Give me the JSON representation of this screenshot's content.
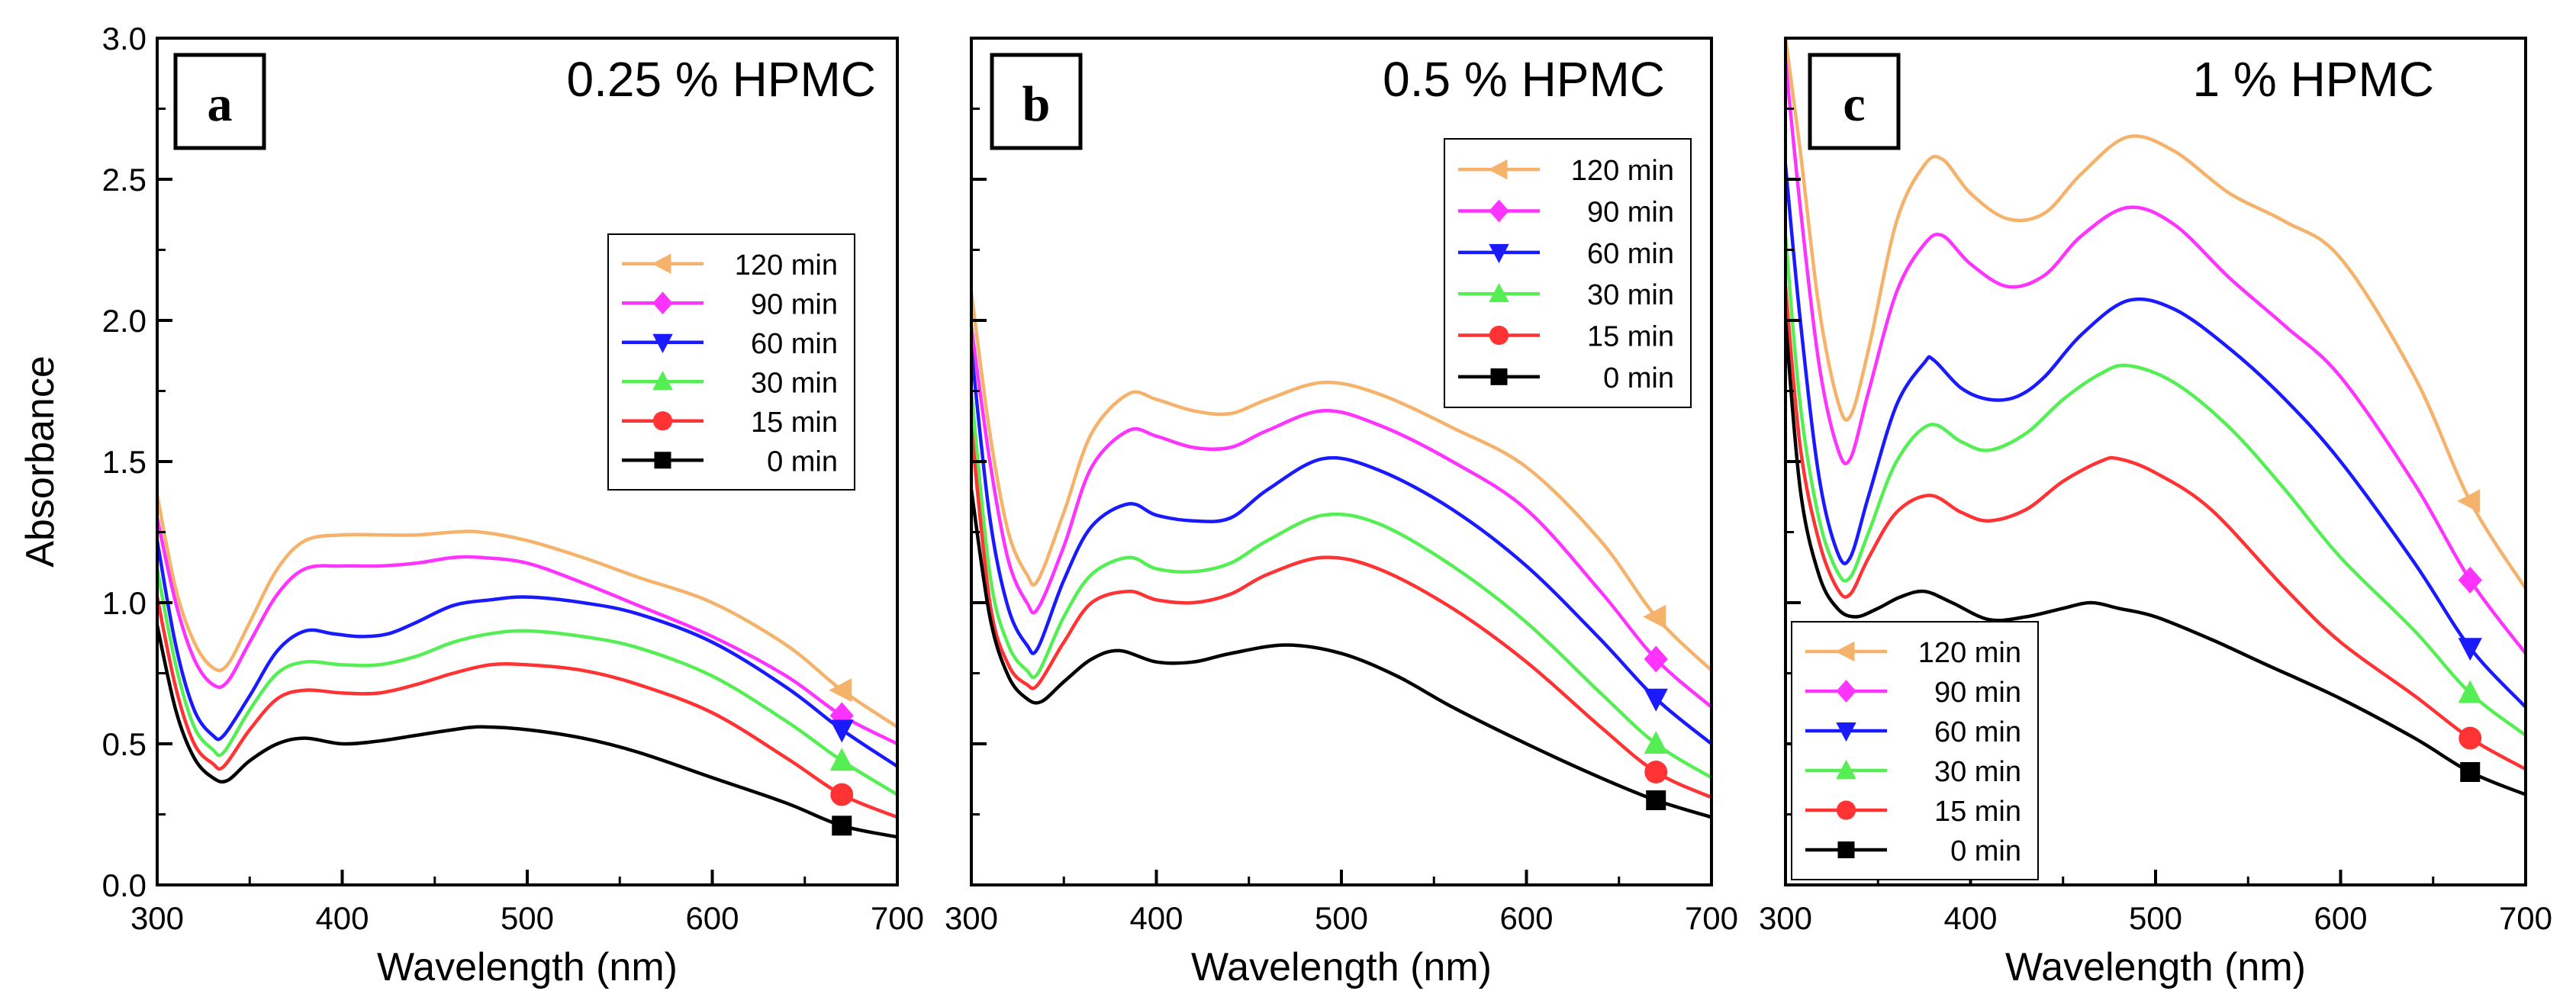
{
  "chart_data": [
    {
      "type": "line",
      "panel_label": "a",
      "title": "0.25 % HPMC",
      "xlabel": "Wavelength (nm)",
      "ylabel": "Absorbance",
      "xlim": [
        300,
        700
      ],
      "ylim": [
        0.0,
        3.0
      ],
      "xticks": [
        "300",
        "400",
        "500",
        "600",
        "700"
      ],
      "yticks": [
        "0.0",
        "0.5",
        "1.0",
        "1.5",
        "2.0",
        "2.5",
        "3.0"
      ],
      "marker_x": 670,
      "legend_position": "center-right",
      "series": [
        {
          "name": "120 min",
          "color": "#f5b26b",
          "marker": "triangle-left",
          "x": [
            300,
            310,
            320,
            330,
            338,
            350,
            365,
            380,
            400,
            420,
            440,
            460,
            475,
            500,
            530,
            560,
            600,
            640,
            670,
            700
          ],
          "y": [
            1.38,
            1.05,
            0.86,
            0.77,
            0.78,
            0.93,
            1.12,
            1.22,
            1.24,
            1.24,
            1.24,
            1.25,
            1.25,
            1.22,
            1.16,
            1.09,
            1.0,
            0.85,
            0.69,
            0.56
          ]
        },
        {
          "name": "90 min",
          "color": "#ff33ff",
          "marker": "diamond",
          "x": [
            300,
            310,
            320,
            330,
            338,
            350,
            365,
            380,
            400,
            420,
            440,
            460,
            475,
            500,
            530,
            560,
            600,
            640,
            670,
            700
          ],
          "y": [
            1.3,
            1.0,
            0.8,
            0.71,
            0.72,
            0.86,
            1.03,
            1.12,
            1.13,
            1.13,
            1.14,
            1.16,
            1.16,
            1.14,
            1.07,
            0.99,
            0.88,
            0.74,
            0.6,
            0.5
          ]
        },
        {
          "name": "60 min",
          "color": "#1a1aff",
          "marker": "triangle-down",
          "x": [
            300,
            310,
            320,
            330,
            336,
            350,
            365,
            380,
            395,
            410,
            425,
            440,
            460,
            480,
            500,
            530,
            560,
            600,
            640,
            670,
            700
          ],
          "y": [
            1.22,
            0.85,
            0.62,
            0.53,
            0.53,
            0.67,
            0.83,
            0.9,
            0.89,
            0.88,
            0.89,
            0.93,
            0.99,
            1.01,
            1.02,
            1.0,
            0.96,
            0.86,
            0.7,
            0.55,
            0.42
          ]
        },
        {
          "name": "30 min",
          "color": "#55ee55",
          "marker": "triangle-up",
          "x": [
            300,
            310,
            320,
            330,
            336,
            350,
            365,
            380,
            400,
            420,
            440,
            460,
            480,
            500,
            530,
            560,
            600,
            640,
            670,
            700
          ],
          "y": [
            1.12,
            0.78,
            0.56,
            0.48,
            0.47,
            0.62,
            0.75,
            0.79,
            0.78,
            0.78,
            0.81,
            0.86,
            0.89,
            0.9,
            0.88,
            0.84,
            0.74,
            0.58,
            0.44,
            0.32
          ]
        },
        {
          "name": "15 min",
          "color": "#ff3333",
          "marker": "circle",
          "x": [
            300,
            310,
            320,
            330,
            336,
            350,
            365,
            380,
            400,
            420,
            440,
            460,
            480,
            500,
            530,
            560,
            600,
            640,
            670,
            700
          ],
          "y": [
            1.02,
            0.7,
            0.5,
            0.43,
            0.42,
            0.55,
            0.66,
            0.69,
            0.68,
            0.68,
            0.71,
            0.75,
            0.78,
            0.78,
            0.76,
            0.71,
            0.61,
            0.45,
            0.32,
            0.24
          ]
        },
        {
          "name": "0 min",
          "color": "#000000",
          "marker": "square",
          "x": [
            300,
            310,
            320,
            330,
            338,
            350,
            365,
            380,
            400,
            420,
            440,
            460,
            475,
            500,
            530,
            560,
            600,
            640,
            670,
            700
          ],
          "y": [
            0.92,
            0.62,
            0.45,
            0.38,
            0.37,
            0.44,
            0.5,
            0.52,
            0.5,
            0.51,
            0.53,
            0.55,
            0.56,
            0.55,
            0.52,
            0.47,
            0.38,
            0.29,
            0.21,
            0.17
          ]
        }
      ]
    },
    {
      "type": "line",
      "panel_label": "b",
      "title": "0.5 % HPMC",
      "xlabel": "Wavelength (nm)",
      "ylabel": "",
      "xlim": [
        300,
        700
      ],
      "ylim": [
        0.0,
        3.0
      ],
      "xticks": [
        "300",
        "400",
        "500",
        "600",
        "700"
      ],
      "yticks": [],
      "marker_x": 670,
      "legend_position": "top-right",
      "series": [
        {
          "name": "120 min",
          "color": "#f5b26b",
          "marker": "triangle-left",
          "x": [
            300,
            310,
            320,
            330,
            336,
            350,
            365,
            385,
            400,
            420,
            440,
            460,
            490,
            520,
            560,
            600,
            640,
            670,
            700
          ],
          "y": [
            2.1,
            1.6,
            1.25,
            1.1,
            1.08,
            1.32,
            1.6,
            1.74,
            1.72,
            1.68,
            1.67,
            1.72,
            1.78,
            1.74,
            1.62,
            1.48,
            1.22,
            0.95,
            0.76
          ]
        },
        {
          "name": "90 min",
          "color": "#ff33ff",
          "marker": "diamond",
          "x": [
            300,
            310,
            320,
            330,
            336,
            350,
            365,
            385,
            400,
            420,
            440,
            460,
            490,
            520,
            560,
            600,
            640,
            670,
            700
          ],
          "y": [
            1.98,
            1.5,
            1.15,
            1.0,
            0.98,
            1.2,
            1.48,
            1.61,
            1.59,
            1.55,
            1.55,
            1.61,
            1.68,
            1.63,
            1.5,
            1.33,
            1.04,
            0.8,
            0.63
          ]
        },
        {
          "name": "60 min",
          "color": "#1a1aff",
          "marker": "triangle-down",
          "x": [
            300,
            310,
            320,
            330,
            336,
            350,
            365,
            385,
            400,
            420,
            440,
            460,
            490,
            520,
            560,
            600,
            640,
            670,
            700
          ],
          "y": [
            1.9,
            1.3,
            0.98,
            0.85,
            0.84,
            1.08,
            1.27,
            1.35,
            1.31,
            1.29,
            1.3,
            1.4,
            1.51,
            1.47,
            1.33,
            1.13,
            0.87,
            0.66,
            0.5
          ]
        },
        {
          "name": "30 min",
          "color": "#55ee55",
          "marker": "triangle-up",
          "x": [
            300,
            310,
            320,
            330,
            336,
            350,
            365,
            385,
            400,
            420,
            440,
            460,
            490,
            520,
            560,
            600,
            640,
            670,
            700
          ],
          "y": [
            1.75,
            1.1,
            0.85,
            0.76,
            0.75,
            0.95,
            1.1,
            1.16,
            1.12,
            1.11,
            1.14,
            1.22,
            1.31,
            1.28,
            1.13,
            0.93,
            0.68,
            0.5,
            0.38
          ]
        },
        {
          "name": "15 min",
          "color": "#ff3333",
          "marker": "circle",
          "x": [
            300,
            310,
            320,
            330,
            336,
            350,
            365,
            385,
            400,
            420,
            440,
            460,
            490,
            520,
            560,
            600,
            640,
            670,
            700
          ],
          "y": [
            1.62,
            1.0,
            0.78,
            0.71,
            0.71,
            0.86,
            1.0,
            1.04,
            1.01,
            1.0,
            1.03,
            1.1,
            1.16,
            1.12,
            0.98,
            0.79,
            0.56,
            0.4,
            0.31
          ]
        },
        {
          "name": "0 min",
          "color": "#000000",
          "marker": "square",
          "x": [
            300,
            310,
            320,
            330,
            338,
            350,
            365,
            380,
            400,
            420,
            440,
            470,
            500,
            530,
            560,
            600,
            640,
            670,
            700
          ],
          "y": [
            1.4,
            0.95,
            0.74,
            0.66,
            0.65,
            0.72,
            0.8,
            0.83,
            0.79,
            0.79,
            0.82,
            0.85,
            0.82,
            0.74,
            0.63,
            0.5,
            0.38,
            0.3,
            0.24
          ]
        }
      ]
    },
    {
      "type": "line",
      "panel_label": "c",
      "title": "1 % HPMC",
      "xlabel": "Wavelength (nm)",
      "ylabel": "",
      "xlim": [
        300,
        700
      ],
      "ylim": [
        0.0,
        3.0
      ],
      "xticks": [
        "300",
        "400",
        "500",
        "600",
        "700"
      ],
      "yticks": [],
      "marker_x": 670,
      "legend_position": "bottom-left",
      "series": [
        {
          "name": "120 min",
          "color": "#f5b26b",
          "marker": "triangle-left",
          "x": [
            300,
            308,
            318,
            328,
            335,
            345,
            360,
            375,
            385,
            400,
            420,
            440,
            460,
            485,
            510,
            540,
            570,
            600,
            640,
            670,
            700
          ],
          "y": [
            3.0,
            2.6,
            2.05,
            1.72,
            1.66,
            1.9,
            2.35,
            2.55,
            2.57,
            2.45,
            2.36,
            2.38,
            2.52,
            2.65,
            2.6,
            2.45,
            2.35,
            2.22,
            1.8,
            1.36,
            1.05
          ]
        },
        {
          "name": "90 min",
          "color": "#ff33ff",
          "marker": "diamond",
          "x": [
            300,
            308,
            318,
            328,
            335,
            345,
            360,
            375,
            385,
            400,
            420,
            440,
            460,
            485,
            510,
            540,
            570,
            600,
            640,
            670,
            700
          ],
          "y": [
            2.92,
            2.4,
            1.85,
            1.55,
            1.51,
            1.75,
            2.1,
            2.27,
            2.3,
            2.2,
            2.12,
            2.16,
            2.3,
            2.4,
            2.34,
            2.15,
            1.98,
            1.8,
            1.42,
            1.08,
            0.82
          ]
        },
        {
          "name": "60 min",
          "color": "#1a1aff",
          "marker": "triangle-down",
          "x": [
            300,
            308,
            318,
            328,
            335,
            345,
            360,
            375,
            380,
            395,
            410,
            425,
            440,
            460,
            485,
            510,
            540,
            570,
            600,
            640,
            670,
            700
          ],
          "y": [
            2.55,
            2.0,
            1.45,
            1.18,
            1.16,
            1.38,
            1.7,
            1.85,
            1.86,
            1.76,
            1.72,
            1.73,
            1.8,
            1.95,
            2.07,
            2.04,
            1.9,
            1.72,
            1.5,
            1.14,
            0.84,
            0.63
          ]
        },
        {
          "name": "30 min",
          "color": "#55ee55",
          "marker": "triangle-up",
          "x": [
            300,
            308,
            318,
            328,
            335,
            345,
            360,
            378,
            395,
            410,
            430,
            450,
            470,
            485,
            510,
            540,
            570,
            600,
            640,
            670,
            700
          ],
          "y": [
            2.3,
            1.7,
            1.3,
            1.11,
            1.09,
            1.25,
            1.5,
            1.63,
            1.57,
            1.54,
            1.6,
            1.72,
            1.81,
            1.84,
            1.78,
            1.62,
            1.4,
            1.16,
            0.9,
            0.68,
            0.53
          ]
        },
        {
          "name": "15 min",
          "color": "#ff3333",
          "marker": "circle",
          "x": [
            300,
            308,
            318,
            328,
            335,
            345,
            360,
            378,
            395,
            410,
            430,
            450,
            470,
            480,
            500,
            530,
            570,
            600,
            640,
            670,
            700
          ],
          "y": [
            2.12,
            1.55,
            1.22,
            1.05,
            1.03,
            1.16,
            1.32,
            1.38,
            1.32,
            1.29,
            1.33,
            1.43,
            1.5,
            1.51,
            1.46,
            1.33,
            1.05,
            0.86,
            0.67,
            0.52,
            0.41
          ]
        },
        {
          "name": "0 min",
          "color": "#000000",
          "marker": "square",
          "x": [
            300,
            308,
            318,
            328,
            338,
            350,
            362,
            375,
            390,
            410,
            430,
            450,
            465,
            480,
            500,
            530,
            560,
            600,
            640,
            670,
            700
          ],
          "y": [
            2.0,
            1.4,
            1.1,
            0.98,
            0.95,
            0.98,
            1.02,
            1.04,
            1.0,
            0.94,
            0.95,
            0.98,
            1.0,
            0.98,
            0.95,
            0.87,
            0.78,
            0.66,
            0.52,
            0.4,
            0.32
          ]
        }
      ]
    }
  ]
}
